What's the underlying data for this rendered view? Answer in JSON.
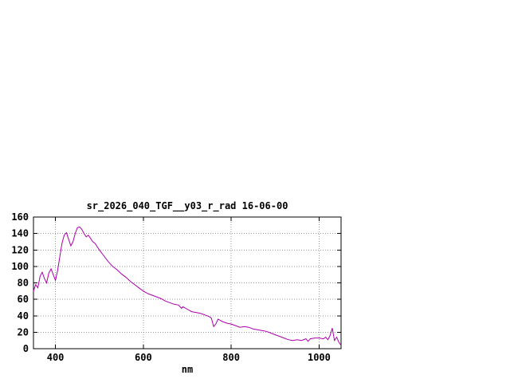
{
  "page": {
    "background": "#ffffff"
  },
  "chart_data": {
    "type": "line",
    "title": "sr_2026_040_TGF__y03_r_rad 16-06-00",
    "xlabel": "nm",
    "ylabel": "",
    "xlim": [
      350,
      1050
    ],
    "ylim": [
      0,
      160
    ],
    "x_ticks": [
      400,
      600,
      800,
      1000
    ],
    "y_ticks": [
      0,
      20,
      40,
      60,
      80,
      100,
      120,
      140,
      160
    ],
    "grid": true,
    "legend": "none",
    "colors": {
      "line": "#aa00aa",
      "grid": "#999999",
      "axis": "#000000",
      "text": "#000000"
    },
    "series": [
      {
        "name": "",
        "x": [
          350,
          355,
          360,
          365,
          370,
          375,
          380,
          385,
          390,
          395,
          400,
          405,
          410,
          415,
          420,
          425,
          430,
          435,
          440,
          445,
          450,
          455,
          460,
          465,
          470,
          475,
          480,
          485,
          490,
          495,
          500,
          510,
          520,
          530,
          540,
          550,
          560,
          570,
          580,
          590,
          600,
          610,
          620,
          630,
          640,
          650,
          660,
          670,
          680,
          687,
          690,
          700,
          710,
          720,
          730,
          740,
          750,
          755,
          760,
          765,
          770,
          780,
          790,
          800,
          810,
          820,
          830,
          840,
          850,
          860,
          870,
          880,
          890,
          900,
          910,
          920,
          930,
          940,
          950,
          960,
          970,
          975,
          980,
          990,
          1000,
          1010,
          1015,
          1020,
          1025,
          1030,
          1035,
          1040,
          1045,
          1050
        ],
        "y": [
          70,
          78,
          74,
          88,
          93,
          85,
          80,
          92,
          97,
          90,
          83,
          95,
          112,
          128,
          138,
          141,
          133,
          125,
          130,
          140,
          147,
          148,
          145,
          140,
          136,
          138,
          134,
          130,
          128,
          124,
          120,
          113,
          106,
          100,
          96,
          91,
          87,
          82,
          78,
          74,
          70,
          67,
          65,
          63,
          61,
          58,
          56,
          54,
          53,
          49,
          51,
          48,
          45,
          44,
          43,
          41,
          39,
          37,
          27,
          30,
          36,
          33,
          31,
          30,
          28,
          26,
          27,
          26,
          24,
          23,
          22,
          21,
          19,
          17,
          15,
          13,
          11,
          10,
          11,
          10,
          12,
          9,
          12,
          13,
          13,
          12,
          14,
          11,
          16,
          25,
          10,
          14,
          8,
          4
        ]
      }
    ]
  }
}
